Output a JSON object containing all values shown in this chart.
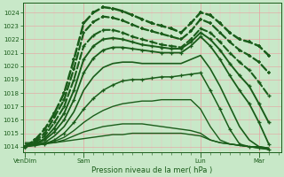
{
  "bg_color": "#c8e8c8",
  "grid_color": "#b0d8b0",
  "grid_color_minor": "#d0ecd0",
  "line_color": "#1a5c1a",
  "title": "Pression niveau de la mer( hPa )",
  "ylabel_values": [
    1014,
    1015,
    1016,
    1017,
    1018,
    1019,
    1020,
    1021,
    1022,
    1023,
    1024
  ],
  "xtick_labels": [
    "VenDim",
    "Sam",
    "Lun",
    "Mar"
  ],
  "xtick_pos": [
    0,
    48,
    144,
    192
  ],
  "xlim": [
    -2,
    210
  ],
  "ylim": [
    1013.6,
    1024.7
  ],
  "lines": [
    {
      "x": [
        0,
        8,
        16,
        24,
        32,
        40,
        48,
        56,
        64,
        72,
        80,
        88,
        96,
        104,
        112,
        120,
        128,
        136,
        144,
        152,
        160,
        168,
        176,
        184,
        192,
        200
      ],
      "y": [
        1014.0,
        1014.5,
        1015.3,
        1016.5,
        1018.0,
        1020.5,
        1023.2,
        1024.0,
        1024.4,
        1024.3,
        1024.1,
        1023.8,
        1023.5,
        1023.2,
        1023.0,
        1022.8,
        1022.5,
        1023.2,
        1024.0,
        1023.8,
        1023.2,
        1022.5,
        1022.0,
        1021.8,
        1021.5,
        1020.8
      ],
      "lw": 1.8,
      "dashed": true,
      "marker": "+",
      "ms": 3.5,
      "mew": 1.2
    },
    {
      "x": [
        0,
        8,
        16,
        24,
        32,
        40,
        48,
        56,
        64,
        72,
        80,
        88,
        96,
        104,
        112,
        120,
        128,
        136,
        144,
        152,
        160,
        168,
        176,
        184,
        192,
        200
      ],
      "y": [
        1014.0,
        1014.4,
        1015.0,
        1016.2,
        1017.5,
        1019.8,
        1022.5,
        1023.3,
        1023.7,
        1023.6,
        1023.4,
        1023.1,
        1022.8,
        1022.6,
        1022.4,
        1022.2,
        1022.0,
        1022.6,
        1023.5,
        1023.2,
        1022.5,
        1021.8,
        1021.2,
        1020.8,
        1020.3,
        1019.5
      ],
      "lw": 1.6,
      "dashed": true,
      "marker": "+",
      "ms": 3.0,
      "mew": 1.1
    },
    {
      "x": [
        0,
        8,
        16,
        24,
        32,
        40,
        48,
        56,
        64,
        72,
        80,
        88,
        96,
        104,
        112,
        120,
        128,
        136,
        144,
        152,
        160,
        168,
        176,
        184,
        192,
        200
      ],
      "y": [
        1014.0,
        1014.3,
        1014.8,
        1015.8,
        1017.0,
        1019.0,
        1021.5,
        1022.3,
        1022.7,
        1022.7,
        1022.5,
        1022.2,
        1022.0,
        1021.8,
        1021.6,
        1021.5,
        1021.4,
        1022.0,
        1022.8,
        1022.5,
        1021.8,
        1021.0,
        1020.3,
        1019.7,
        1018.8,
        1017.8
      ],
      "lw": 1.5,
      "dashed": true,
      "marker": "+",
      "ms": 2.8,
      "mew": 1.0
    },
    {
      "x": [
        0,
        8,
        16,
        24,
        32,
        40,
        48,
        56,
        64,
        72,
        80,
        88,
        96,
        104,
        112,
        120,
        128,
        136,
        144,
        152,
        160,
        168,
        176,
        184,
        192,
        200
      ],
      "y": [
        1014.0,
        1014.2,
        1014.6,
        1015.4,
        1016.5,
        1018.2,
        1020.5,
        1021.5,
        1022.0,
        1022.1,
        1022.0,
        1021.8,
        1021.6,
        1021.5,
        1021.4,
        1021.3,
        1021.3,
        1021.8,
        1022.5,
        1022.0,
        1021.2,
        1020.2,
        1019.3,
        1018.5,
        1017.2,
        1015.8
      ],
      "lw": 1.4,
      "dashed": false,
      "marker": "+",
      "ms": 2.5,
      "mew": 1.0
    },
    {
      "x": [
        0,
        8,
        16,
        24,
        32,
        40,
        48,
        56,
        64,
        72,
        80,
        88,
        96,
        104,
        112,
        120,
        128,
        136,
        144,
        152,
        160,
        168,
        176,
        184,
        192,
        200
      ],
      "y": [
        1014.0,
        1014.2,
        1014.5,
        1015.1,
        1016.0,
        1017.5,
        1019.5,
        1020.6,
        1021.2,
        1021.4,
        1021.4,
        1021.3,
        1021.2,
        1021.1,
        1021.0,
        1021.0,
        1021.0,
        1021.5,
        1022.2,
        1021.5,
        1020.5,
        1019.3,
        1018.2,
        1017.2,
        1015.8,
        1014.2
      ],
      "lw": 1.3,
      "dashed": false,
      "marker": "+",
      "ms": 2.3,
      "mew": 0.9
    },
    {
      "x": [
        0,
        8,
        16,
        24,
        32,
        40,
        48,
        56,
        64,
        72,
        80,
        88,
        96,
        104,
        112,
        120,
        128,
        136,
        144,
        152,
        160,
        168,
        176,
        184,
        192,
        200
      ],
      "y": [
        1014.0,
        1014.1,
        1014.3,
        1014.8,
        1015.5,
        1016.6,
        1018.2,
        1019.2,
        1019.9,
        1020.2,
        1020.3,
        1020.3,
        1020.2,
        1020.2,
        1020.2,
        1020.2,
        1020.2,
        1020.5,
        1020.8,
        1019.8,
        1018.5,
        1017.0,
        1015.5,
        1014.5,
        1014.0,
        1013.8
      ],
      "lw": 1.2,
      "dashed": false,
      "marker": null,
      "ms": 0,
      "mew": 0
    },
    {
      "x": [
        0,
        8,
        16,
        24,
        32,
        40,
        48,
        56,
        64,
        72,
        80,
        88,
        96,
        104,
        112,
        120,
        128,
        136,
        144,
        152,
        160,
        168,
        176,
        184,
        192,
        200
      ],
      "y": [
        1014.0,
        1014.1,
        1014.2,
        1014.5,
        1015.0,
        1015.8,
        1016.8,
        1017.6,
        1018.2,
        1018.6,
        1018.9,
        1019.0,
        1019.0,
        1019.1,
        1019.2,
        1019.2,
        1019.3,
        1019.4,
        1019.5,
        1018.2,
        1016.8,
        1015.3,
        1014.2,
        1014.0,
        1013.9,
        1013.8
      ],
      "lw": 1.1,
      "dashed": false,
      "marker": "+",
      "ms": 2.5,
      "mew": 0.9
    },
    {
      "x": [
        0,
        8,
        16,
        24,
        32,
        40,
        48,
        56,
        64,
        72,
        80,
        88,
        96,
        104,
        112,
        120,
        128,
        136,
        144,
        152,
        160,
        168,
        176,
        184,
        192,
        200
      ],
      "y": [
        1014.1,
        1014.1,
        1014.2,
        1014.4,
        1014.7,
        1015.2,
        1015.8,
        1016.3,
        1016.7,
        1017.0,
        1017.2,
        1017.3,
        1017.4,
        1017.4,
        1017.5,
        1017.5,
        1017.5,
        1017.5,
        1016.8,
        1015.5,
        1014.5,
        1014.2,
        1014.1,
        1014.0,
        1013.9,
        1013.8
      ],
      "lw": 1.0,
      "dashed": false,
      "marker": null,
      "ms": 0,
      "mew": 0
    },
    {
      "x": [
        0,
        8,
        16,
        24,
        32,
        40,
        48,
        56,
        64,
        72,
        80,
        88,
        96,
        104,
        112,
        120,
        128,
        136,
        144,
        152,
        160,
        168,
        176,
        184,
        192,
        200
      ],
      "y": [
        1014.2,
        1014.2,
        1014.2,
        1014.3,
        1014.5,
        1014.8,
        1015.1,
        1015.3,
        1015.5,
        1015.6,
        1015.7,
        1015.7,
        1015.7,
        1015.6,
        1015.5,
        1015.4,
        1015.3,
        1015.2,
        1015.0,
        1014.5,
        1014.3,
        1014.2,
        1014.1,
        1014.0,
        1014.0,
        1013.9
      ],
      "lw": 1.0,
      "dashed": false,
      "marker": null,
      "ms": 0,
      "mew": 0
    },
    {
      "x": [
        0,
        8,
        16,
        24,
        32,
        40,
        48,
        56,
        64,
        72,
        80,
        88,
        96,
        104,
        112,
        120,
        128,
        136,
        144,
        152,
        160,
        168,
        176,
        184,
        192,
        200
      ],
      "y": [
        1014.3,
        1014.3,
        1014.3,
        1014.3,
        1014.4,
        1014.5,
        1014.6,
        1014.7,
        1014.8,
        1014.9,
        1014.9,
        1015.0,
        1015.0,
        1015.0,
        1015.0,
        1015.0,
        1015.0,
        1014.9,
        1014.8,
        1014.5,
        1014.3,
        1014.2,
        1014.1,
        1014.0,
        1014.0,
        1013.9
      ],
      "lw": 1.0,
      "dashed": false,
      "marker": null,
      "ms": 0,
      "mew": 0
    }
  ]
}
